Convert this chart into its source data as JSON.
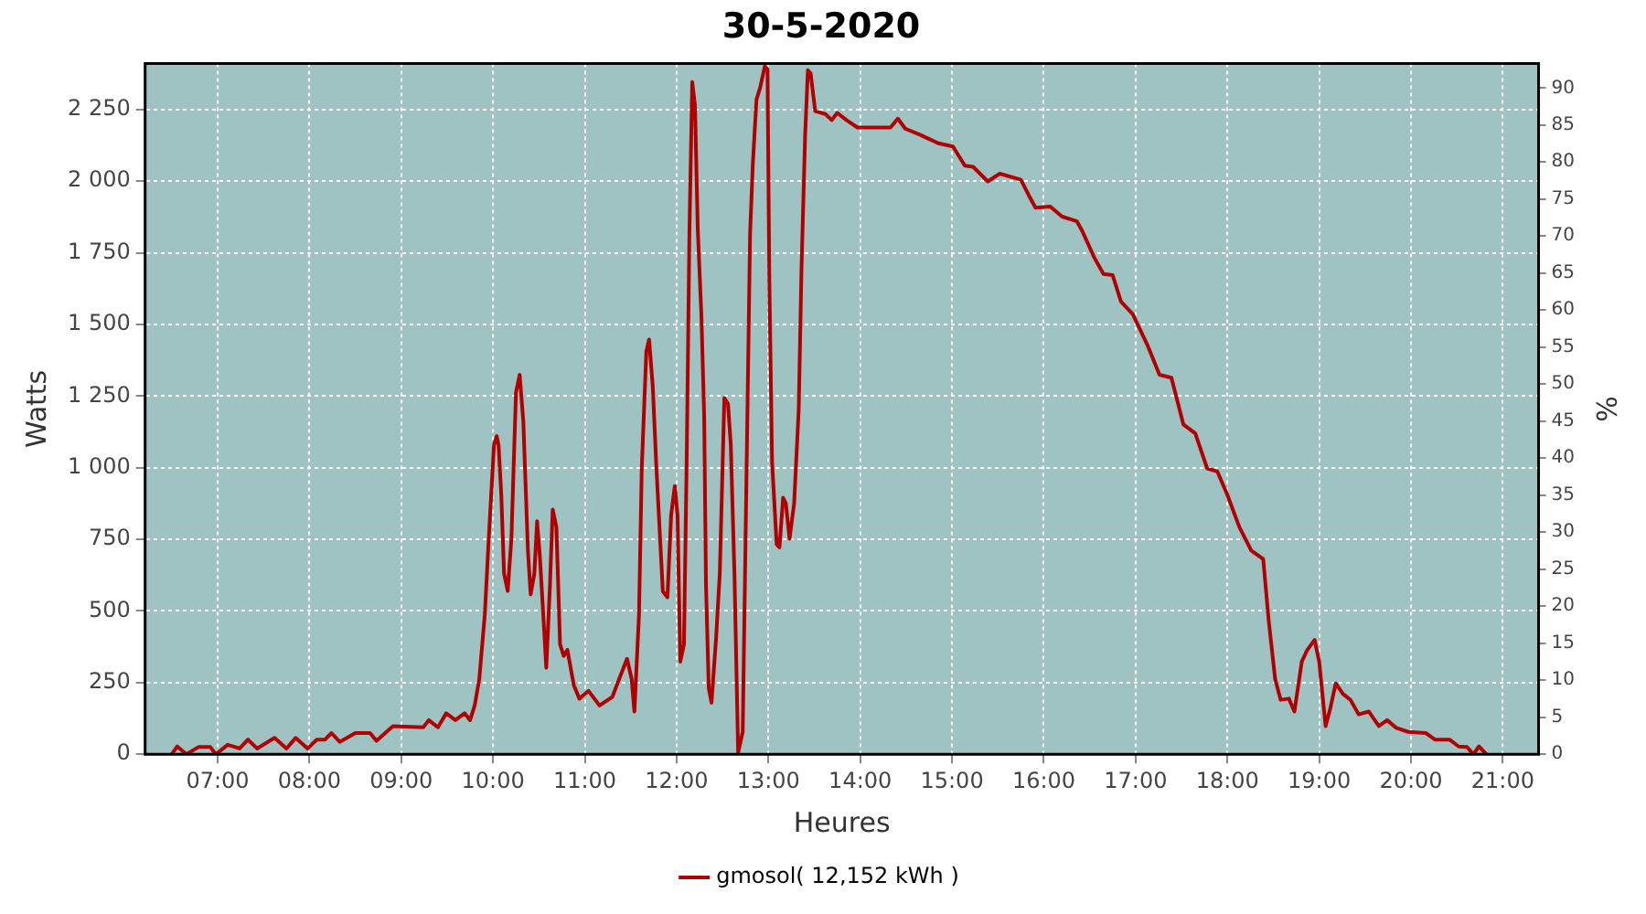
{
  "chart_data": {
    "type": "line",
    "title": "30-5-2020",
    "xlabel": "Heures",
    "ylabel": "Watts",
    "y2label": "%",
    "xlim": [
      6.21,
      21.39
    ],
    "xticks": [
      {
        "value": 7,
        "label": "07:00"
      },
      {
        "value": 8,
        "label": "08:00"
      },
      {
        "value": 9,
        "label": "09:00"
      },
      {
        "value": 10,
        "label": "10:00"
      },
      {
        "value": 11,
        "label": "11:00"
      },
      {
        "value": 12,
        "label": "12:00"
      },
      {
        "value": 13,
        "label": "13:00"
      },
      {
        "value": 14,
        "label": "14:00"
      },
      {
        "value": 15,
        "label": "15:00"
      },
      {
        "value": 16,
        "label": "16:00"
      },
      {
        "value": 17,
        "label": "17:00"
      },
      {
        "value": 18,
        "label": "18:00"
      },
      {
        "value": 19,
        "label": "19:00"
      },
      {
        "value": 20,
        "label": "20:00"
      },
      {
        "value": 21,
        "label": "21:00"
      }
    ],
    "ylim": [
      0,
      2410
    ],
    "yticks": [
      0,
      250,
      500,
      750,
      {
        "value": 1000,
        "label": "1 000"
      },
      {
        "value": 1250,
        "label": "1 250"
      },
      {
        "value": 1500,
        "label": "1 500"
      },
      {
        "value": 1750,
        "label": "1 750"
      },
      {
        "value": 2000,
        "label": "2 000"
      },
      {
        "value": 2250,
        "label": "2 250"
      }
    ],
    "y2lim": [
      0,
      93.3
    ],
    "y2ticks": [
      0,
      5,
      10,
      15,
      20,
      25,
      30,
      35,
      40,
      45,
      50,
      55,
      60,
      65,
      70,
      75,
      80,
      85,
      90
    ],
    "grid": true,
    "legend": "bottom",
    "marker": "none",
    "line_style": "solid",
    "series": [
      {
        "name": "gmosol( 12,152 kWh )",
        "color": "#b00000",
        "x": [
          6.5,
          6.56,
          6.66,
          6.79,
          6.92,
          6.98,
          7.11,
          7.24,
          7.33,
          7.43,
          7.62,
          7.75,
          7.85,
          7.98,
          8.08,
          8.17,
          8.24,
          8.33,
          8.5,
          8.66,
          8.73,
          8.91,
          9.04,
          9.24,
          9.3,
          9.4,
          9.49,
          9.59,
          9.69,
          9.75,
          9.8,
          9.85,
          9.91,
          9.95,
          10.01,
          10.04,
          10.06,
          10.09,
          10.12,
          10.16,
          10.2,
          10.25,
          10.29,
          10.33,
          10.38,
          10.41,
          10.45,
          10.48,
          10.51,
          10.54,
          10.58,
          10.62,
          10.65,
          10.69,
          10.73,
          10.77,
          10.81,
          10.88,
          10.94,
          11.04,
          11.16,
          11.3,
          11.36,
          11.46,
          11.51,
          11.54,
          11.59,
          11.62,
          11.67,
          11.7,
          11.74,
          11.78,
          11.85,
          11.9,
          11.94,
          11.98,
          12.01,
          12.04,
          12.08,
          12.11,
          12.14,
          12.17,
          12.2,
          12.23,
          12.27,
          12.3,
          12.32,
          12.35,
          12.38,
          12.43,
          12.47,
          12.52,
          12.56,
          12.59,
          12.63,
          12.67,
          12.72,
          12.75,
          12.8,
          12.83,
          12.87,
          12.91,
          12.96,
          12.99,
          13.01,
          13.04,
          13.09,
          13.12,
          13.16,
          13.19,
          13.23,
          13.28,
          13.33,
          13.36,
          13.4,
          13.43,
          13.46,
          13.51,
          13.62,
          13.69,
          13.75,
          13.85,
          13.97,
          14.33,
          14.41,
          14.49,
          14.65,
          14.85,
          15.01,
          15.14,
          15.23,
          15.39,
          15.52,
          15.75,
          15.84,
          15.91,
          16.07,
          16.2,
          16.36,
          16.42,
          16.55,
          16.65,
          16.75,
          16.84,
          16.97,
          17.13,
          17.26,
          17.39,
          17.52,
          17.65,
          17.78,
          17.89,
          18,
          18.13,
          18.26,
          18.39,
          18.45,
          18.52,
          18.58,
          18.67,
          18.73,
          18.81,
          18.87,
          18.95,
          19,
          19.07,
          19.12,
          19.18,
          19.26,
          19.34,
          19.43,
          19.54,
          19.65,
          19.74,
          19.84,
          19.97,
          20.16,
          20.26,
          20.42,
          20.52,
          20.61,
          20.68,
          20.74,
          20.82
        ],
        "values": [
          0,
          27,
          0,
          25,
          25,
          0,
          33,
          20,
          51,
          20,
          57,
          20,
          57,
          20,
          51,
          51,
          74,
          43,
          74,
          74,
          47,
          98,
          96,
          94,
          119,
          94,
          143,
          119,
          143,
          119,
          170,
          262,
          486,
          732,
          1079,
          1110,
          1079,
          905,
          630,
          570,
          752,
          1263,
          1324,
          1161,
          711,
          558,
          630,
          813,
          691,
          527,
          302,
          589,
          854,
          793,
          384,
          343,
          364,
          241,
          194,
          221,
          170,
          200,
          251,
          333,
          262,
          149,
          486,
          997,
          1406,
          1447,
          1283,
          997,
          568,
          548,
          834,
          936,
          834,
          323,
          384,
          1038,
          1835,
          2346,
          2264,
          1835,
          1529,
          1181,
          589,
          231,
          180,
          405,
          630,
          1243,
          1222,
          1079,
          630,
          6,
          78,
          732,
          1815,
          2060,
          2285,
          2326,
          2400,
          2390,
          1651,
          1018,
          732,
          722,
          895,
          875,
          752,
          875,
          1202,
          1692,
          2162,
          2387,
          2375,
          2244,
          2234,
          2213,
          2238,
          2213,
          2187,
          2187,
          2218,
          2183,
          2162,
          2132,
          2121,
          2054,
          2050,
          1999,
          2026,
          2005,
          1948,
          1907,
          1911,
          1876,
          1860,
          1825,
          1733,
          1676,
          1672,
          1580,
          1535,
          1427,
          1324,
          1314,
          1151,
          1120,
          997,
          987,
          905,
          793,
          711,
          681,
          466,
          262,
          190,
          194,
          149,
          323,
          364,
          399,
          323,
          98,
          159,
          247,
          210,
          190,
          139,
          149,
          98,
          119,
          92,
          78,
          74,
          51,
          51,
          27,
          25,
          0,
          27,
          0
        ]
      }
    ]
  }
}
